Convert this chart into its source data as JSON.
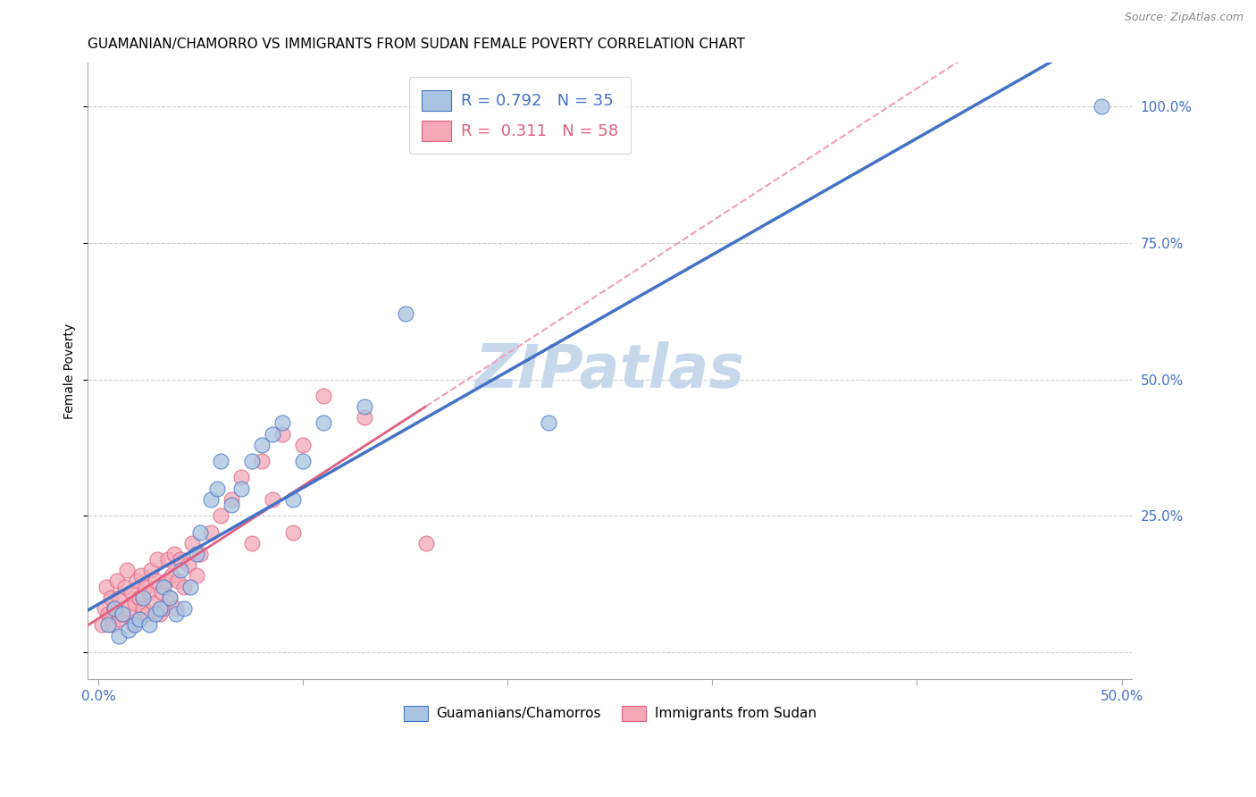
{
  "title": "GUAMANIAN/CHAMORRO VS IMMIGRANTS FROM SUDAN FEMALE POVERTY CORRELATION CHART",
  "source": "Source: ZipAtlas.com",
  "ylabel": "Female Poverty",
  "xlim": [
    -0.005,
    0.505
  ],
  "ylim": [
    -0.05,
    1.08
  ],
  "xticks": [
    0.0,
    0.1,
    0.2,
    0.3,
    0.4,
    0.5
  ],
  "xticklabels": [
    "0.0%",
    "",
    "",
    "",
    "",
    "50.0%"
  ],
  "yticks_right": [
    0.0,
    0.25,
    0.5,
    0.75,
    1.0
  ],
  "yticklabels_right": [
    "",
    "25.0%",
    "50.0%",
    "75.0%",
    "100.0%"
  ],
  "blue_color": "#A8C4E0",
  "pink_color": "#F4A8B8",
  "blue_line_color": "#4472C4",
  "pink_line_color": "#E06080",
  "pink_dash_color": "#F0A0B8",
  "legend_label1": "R = 0.792   N = 35",
  "legend_label2": "R =  0.311   N = 58",
  "series1_name": "Guamanians/Chamorros",
  "series2_name": "Immigrants from Sudan",
  "watermark": "ZIPatlas",
  "blue_scatter_x": [
    0.005,
    0.008,
    0.01,
    0.012,
    0.015,
    0.018,
    0.02,
    0.022,
    0.025,
    0.028,
    0.03,
    0.032,
    0.035,
    0.038,
    0.04,
    0.042,
    0.045,
    0.048,
    0.05,
    0.055,
    0.058,
    0.06,
    0.065,
    0.07,
    0.075,
    0.08,
    0.085,
    0.09,
    0.095,
    0.1,
    0.11,
    0.13,
    0.15,
    0.22,
    0.49
  ],
  "blue_scatter_y": [
    0.05,
    0.08,
    0.03,
    0.07,
    0.04,
    0.05,
    0.06,
    0.1,
    0.05,
    0.07,
    0.08,
    0.12,
    0.1,
    0.07,
    0.15,
    0.08,
    0.12,
    0.18,
    0.22,
    0.28,
    0.3,
    0.35,
    0.27,
    0.3,
    0.35,
    0.38,
    0.4,
    0.42,
    0.28,
    0.35,
    0.42,
    0.45,
    0.62,
    0.42,
    1.0
  ],
  "pink_scatter_x": [
    0.002,
    0.003,
    0.004,
    0.005,
    0.006,
    0.007,
    0.008,
    0.009,
    0.01,
    0.01,
    0.012,
    0.013,
    0.014,
    0.015,
    0.016,
    0.017,
    0.018,
    0.019,
    0.02,
    0.02,
    0.021,
    0.022,
    0.023,
    0.024,
    0.025,
    0.026,
    0.027,
    0.028,
    0.029,
    0.03,
    0.031,
    0.032,
    0.033,
    0.034,
    0.035,
    0.036,
    0.037,
    0.038,
    0.039,
    0.04,
    0.042,
    0.044,
    0.046,
    0.048,
    0.05,
    0.055,
    0.06,
    0.065,
    0.07,
    0.075,
    0.08,
    0.085,
    0.09,
    0.095,
    0.1,
    0.11,
    0.13,
    0.16
  ],
  "pink_scatter_y": [
    0.05,
    0.08,
    0.12,
    0.07,
    0.1,
    0.05,
    0.08,
    0.13,
    0.06,
    0.1,
    0.07,
    0.12,
    0.15,
    0.08,
    0.11,
    0.05,
    0.09,
    0.13,
    0.06,
    0.1,
    0.14,
    0.08,
    0.12,
    0.07,
    0.11,
    0.15,
    0.09,
    0.13,
    0.17,
    0.07,
    0.11,
    0.08,
    0.13,
    0.17,
    0.1,
    0.14,
    0.18,
    0.08,
    0.13,
    0.17,
    0.12,
    0.16,
    0.2,
    0.14,
    0.18,
    0.22,
    0.25,
    0.28,
    0.32,
    0.2,
    0.35,
    0.28,
    0.4,
    0.22,
    0.38,
    0.47,
    0.43,
    0.2
  ],
  "title_fontsize": 11,
  "axis_label_fontsize": 10,
  "tick_fontsize": 11,
  "legend_fontsize": 13,
  "watermark_fontsize": 48,
  "watermark_color": "#C8D8EC",
  "background_color": "#FFFFFF",
  "grid_color": "#CCCCCC"
}
